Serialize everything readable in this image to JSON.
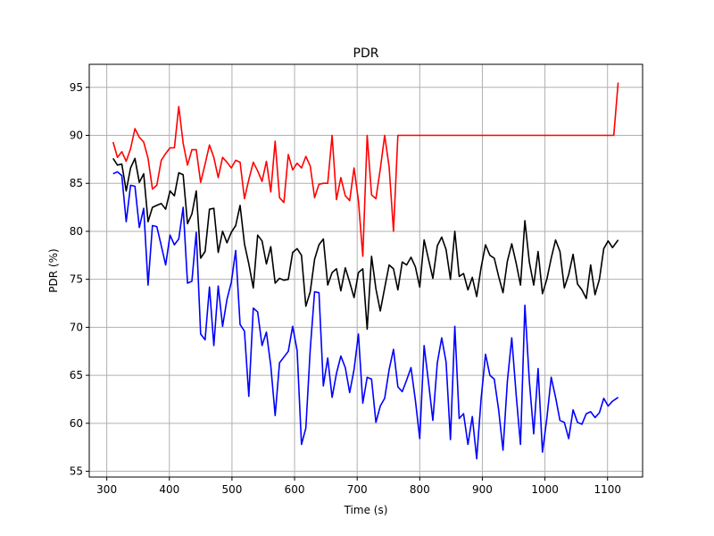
{
  "chart_data": {
    "type": "line",
    "title": "PDR",
    "xlabel": "Time (s)",
    "ylabel": "PDR (%)",
    "xlim": [
      272,
      1156
    ],
    "ylim": [
      54.4,
      97.4
    ],
    "xticks": [
      300,
      400,
      500,
      600,
      700,
      800,
      900,
      1000,
      1100
    ],
    "yticks": [
      55,
      60,
      65,
      70,
      75,
      80,
      85,
      90,
      95
    ],
    "grid": true,
    "series": [
      {
        "color": "#ff0000",
        "x": [
          310,
          317,
          324,
          331,
          338,
          345,
          352,
          359,
          366,
          373,
          380,
          387,
          394,
          401,
          408,
          415,
          422,
          429,
          436,
          443,
          450,
          457,
          464,
          471,
          478,
          485,
          492,
          499,
          506,
          513,
          520,
          527,
          534,
          541,
          548,
          555,
          562,
          569,
          576,
          583,
          590,
          597,
          604,
          611,
          618,
          625,
          632,
          639,
          646,
          653,
          660,
          667,
          674,
          681,
          688,
          695,
          702,
          709,
          716,
          723,
          730,
          737,
          744,
          751,
          758,
          765,
          772,
          779,
          786,
          793,
          800,
          807,
          814,
          821,
          828,
          835,
          1103,
          1110,
          1117
        ],
        "y": [
          89.3,
          87.7,
          88.3,
          87.3,
          88.6,
          90.7,
          89.8,
          89.3,
          87.6,
          84.4,
          84.8,
          87.4,
          88.1,
          88.7,
          88.7,
          93.0,
          89.2,
          86.9,
          88.5,
          88.5,
          85.1,
          87.0,
          89.0,
          87.7,
          85.6,
          87.7,
          87.2,
          86.6,
          87.4,
          87.2,
          83.4,
          85.4,
          87.2,
          86.3,
          85.2,
          87.3,
          84.1,
          89.4,
          83.5,
          83.0,
          88.0,
          86.4,
          87.1,
          86.6,
          87.8,
          86.8,
          83.5,
          84.9,
          85.0,
          85.0,
          90.0,
          83.3,
          85.6,
          83.7,
          83.2,
          86.6,
          83.2,
          77.4,
          90.0,
          83.8,
          83.4,
          86.5,
          90.0,
          86.7,
          80.0,
          90.0,
          90.0,
          90.0,
          90.0,
          90.0,
          90.0,
          90.0,
          90.0,
          90.0,
          90.0,
          90.0,
          90.0,
          90.0,
          95.5
        ]
      },
      {
        "color": "#000000",
        "x": [
          310,
          317,
          324,
          331,
          338,
          345,
          352,
          359,
          366,
          373,
          380,
          387,
          394,
          401,
          408,
          415,
          422,
          429,
          436,
          443,
          450,
          457,
          464,
          471,
          478,
          485,
          492,
          499,
          506,
          513,
          520,
          527,
          534,
          541,
          548,
          555,
          562,
          569,
          576,
          583,
          590,
          597,
          604,
          611,
          618,
          625,
          632,
          639,
          646,
          653,
          660,
          667,
          674,
          681,
          688,
          695,
          702,
          709,
          716,
          723,
          730,
          737,
          744,
          751,
          758,
          765,
          772,
          779,
          786,
          793,
          800,
          807,
          814,
          821,
          828,
          835,
          842,
          849,
          856,
          863,
          870,
          877,
          884,
          891,
          898,
          905,
          912,
          919,
          926,
          933,
          940,
          947,
          954,
          961,
          968,
          975,
          982,
          989,
          996,
          1003,
          1010,
          1017,
          1024,
          1031,
          1038,
          1045,
          1052,
          1059,
          1066,
          1073,
          1080,
          1087,
          1094,
          1101,
          1108,
          1117
        ],
        "y": [
          87.6,
          86.9,
          87.0,
          84.2,
          86.6,
          87.6,
          85.1,
          86.0,
          81.0,
          82.5,
          82.7,
          82.9,
          82.3,
          84.2,
          83.7,
          86.1,
          85.9,
          80.8,
          81.8,
          84.2,
          77.2,
          77.9,
          82.3,
          82.4,
          77.8,
          80.0,
          78.8,
          79.9,
          80.6,
          82.7,
          78.7,
          76.6,
          74.1,
          79.6,
          79.0,
          76.6,
          78.4,
          74.6,
          75.1,
          74.9,
          75.0,
          77.8,
          78.2,
          77.5,
          72.2,
          73.7,
          77.1,
          78.6,
          79.2,
          74.4,
          75.7,
          76.1,
          73.8,
          76.2,
          74.7,
          73.1,
          75.7,
          76.1,
          69.8,
          77.4,
          74.0,
          71.7,
          74.1,
          76.5,
          76.1,
          73.9,
          76.8,
          76.5,
          77.3,
          76.3,
          74.2,
          79.1,
          77.1,
          75.1,
          78.5,
          79.4,
          78.1,
          75.0,
          80.0,
          75.3,
          75.6,
          73.9,
          75.2,
          73.2,
          76.2,
          78.6,
          77.5,
          77.2,
          75.3,
          73.6,
          76.9,
          78.7,
          76.7,
          74.4,
          81.1,
          76.8,
          74.4,
          77.9,
          73.5,
          75.0,
          77.2,
          79.1,
          77.9,
          74.1,
          75.5,
          77.6,
          74.5,
          73.9,
          73.0,
          76.5,
          73.4,
          75.0,
          78.2,
          79.0,
          78.3,
          79.1
        ]
      },
      {
        "color": "#0000ff",
        "x": [
          310,
          317,
          324,
          331,
          338,
          345,
          352,
          359,
          366,
          373,
          380,
          387,
          394,
          401,
          408,
          415,
          422,
          429,
          436,
          443,
          450,
          457,
          464,
          471,
          478,
          485,
          492,
          499,
          506,
          513,
          520,
          527,
          534,
          541,
          548,
          555,
          562,
          569,
          576,
          583,
          590,
          597,
          604,
          611,
          618,
          625,
          632,
          639,
          646,
          653,
          660,
          667,
          674,
          681,
          688,
          695,
          702,
          709,
          716,
          723,
          730,
          737,
          744,
          751,
          758,
          765,
          772,
          779,
          786,
          793,
          800,
          807,
          814,
          821,
          828,
          835,
          842,
          849,
          856,
          863,
          870,
          877,
          884,
          891,
          898,
          905,
          912,
          919,
          926,
          933,
          940,
          947,
          954,
          961,
          968,
          975,
          982,
          989,
          996,
          1003,
          1010,
          1017,
          1024,
          1031,
          1038,
          1045,
          1052,
          1059,
          1066,
          1073,
          1080,
          1087,
          1094,
          1101,
          1108,
          1117
        ],
        "y": [
          86.0,
          86.2,
          85.8,
          81.0,
          84.8,
          84.7,
          80.4,
          82.4,
          74.4,
          80.6,
          80.5,
          78.5,
          76.5,
          79.6,
          78.6,
          79.2,
          82.5,
          74.6,
          74.8,
          79.9,
          69.3,
          68.7,
          74.2,
          68.1,
          74.3,
          70.1,
          72.9,
          74.7,
          78.0,
          70.3,
          69.6,
          62.8,
          72.0,
          71.6,
          68.1,
          69.5,
          66.0,
          60.8,
          66.3,
          66.9,
          67.5,
          70.1,
          67.6,
          57.8,
          59.5,
          67.7,
          73.7,
          73.6,
          63.9,
          66.8,
          62.7,
          65.2,
          67.0,
          65.8,
          63.2,
          65.6,
          69.3,
          62.1,
          64.8,
          64.6,
          60.1,
          61.8,
          62.6,
          65.6,
          67.7,
          63.8,
          63.3,
          64.5,
          65.8,
          62.4,
          58.4,
          68.1,
          64.3,
          60.3,
          66.3,
          68.9,
          66.4,
          58.3,
          70.1,
          60.5,
          61.0,
          57.8,
          60.7,
          56.3,
          62.5,
          67.2,
          65.0,
          64.6,
          61.4,
          57.2,
          64.4,
          68.9,
          63.0,
          57.8,
          72.3,
          64.4,
          58.9,
          65.7,
          57.0,
          60.5,
          64.8,
          62.7,
          60.3,
          60.1,
          58.4,
          61.4,
          60.1,
          59.9,
          61.0,
          61.2,
          60.6,
          61.1,
          62.6,
          61.8,
          62.3,
          62.7
        ]
      }
    ]
  }
}
